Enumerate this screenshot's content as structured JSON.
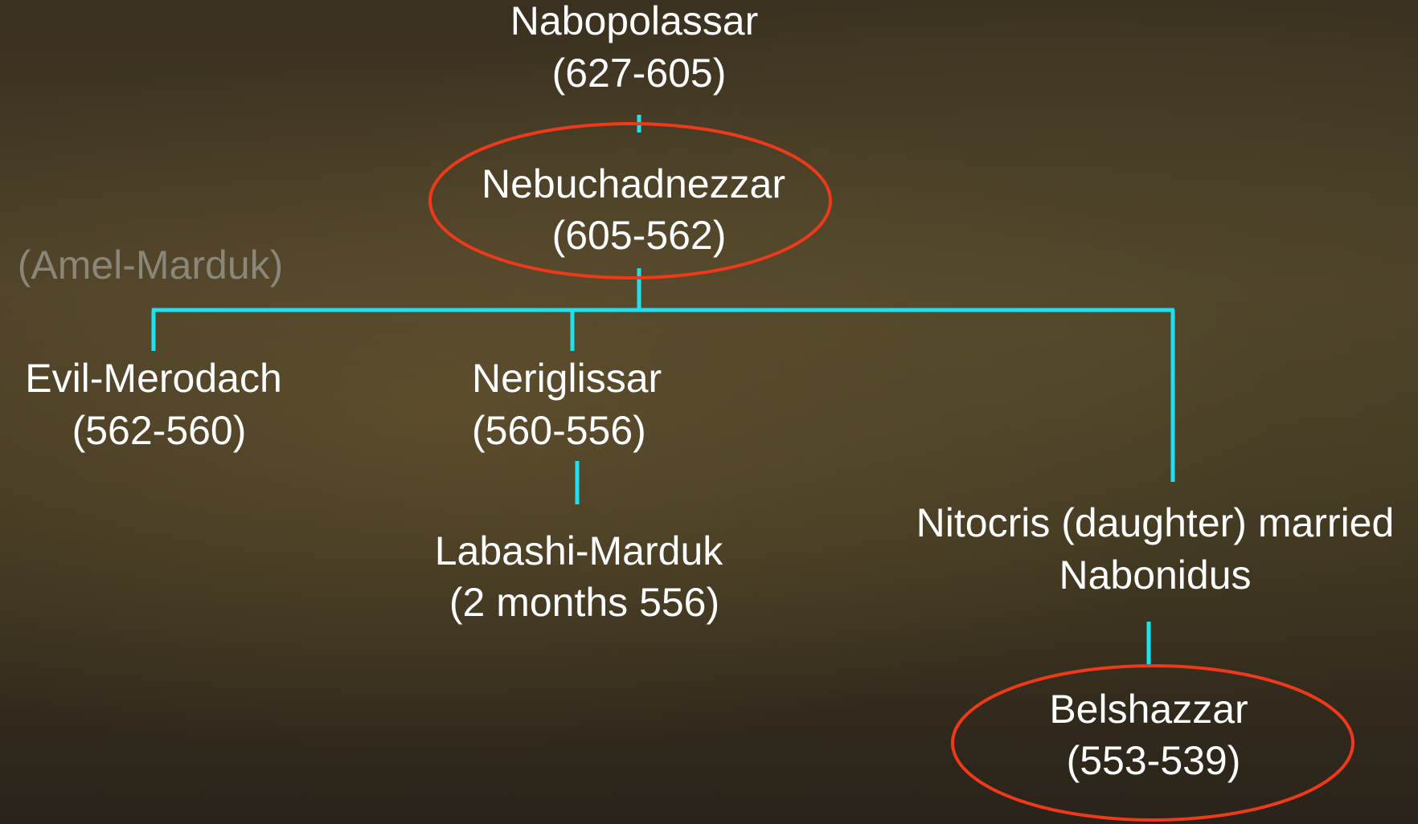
{
  "nodes": [
    {
      "lines": [
        "Nabopolassar",
        "(627-605)"
      ]
    },
    {
      "lines": [
        "Nebuchadnezzar",
        "(605-562)"
      ]
    },
    {
      "lines": [
        "(Amel-Marduk)"
      ]
    },
    {
      "lines": [
        "Evil-Merodach",
        "(562-560)"
      ]
    },
    {
      "lines": [
        "Neriglissar",
        "(560-556)"
      ]
    },
    {
      "lines": [
        "Labashi-Marduk",
        "(2 months 556)"
      ]
    },
    {
      "lines": [
        "Nitocris (daughter) married",
        "Nabonidus"
      ]
    },
    {
      "lines": [
        "Belshazzar",
        "(553-539)"
      ]
    }
  ]
}
